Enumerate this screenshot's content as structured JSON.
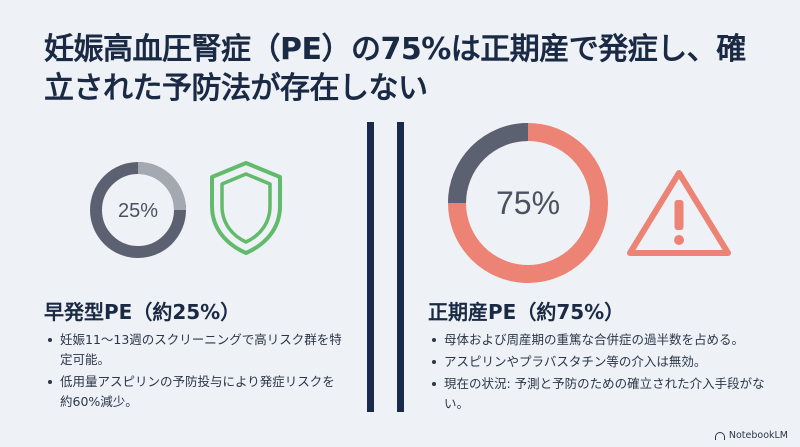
{
  "title": "妊娠高血圧腎症（PE）の75%は正期産で発症し、確立された予防法が存在しない",
  "colors": {
    "navy": "#1a2a4a",
    "donut_gray": "#5b6170",
    "donut_light": "#9aa0aa",
    "coral": "#ec8375",
    "shield_green": "#62bb6d"
  },
  "left": {
    "donut_label": "25%",
    "donut_fraction": 0.25,
    "icon": "shield-icon",
    "heading": "早発型PE（約25%）",
    "bullets": [
      "妊娠11〜13週のスクリーニングで高リスク群を特定可能。",
      "低用量アスピリンの予防投与により発症リスクを約60%減少。"
    ]
  },
  "right": {
    "donut_label": "75%",
    "donut_fraction": 0.75,
    "icon": "warning-icon",
    "heading": "正期産PE（約75%）",
    "bullets": [
      "母体および周産期の重篤な合併症の過半数を占める。",
      "アスピリンやプラバスタチン等の介入は無効。",
      "現在の状況: 予測と予防のための確立された介入手段がない。"
    ]
  },
  "brand": "NotebookLM"
}
